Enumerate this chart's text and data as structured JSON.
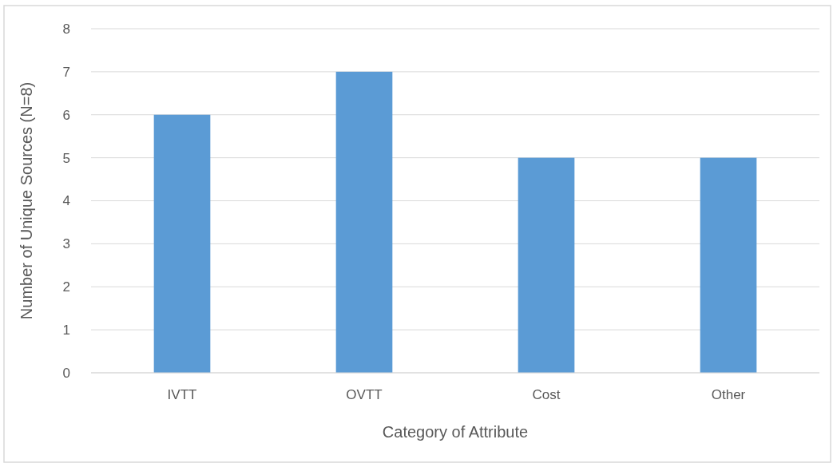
{
  "chart_data": {
    "type": "bar",
    "xlabel": "Category of Attribute",
    "ylabel": "Number of Unique Sources (N=8)",
    "categories": [
      "IVTT",
      "OVTT",
      "Cost",
      "Other"
    ],
    "values": [
      6,
      7,
      5,
      5
    ],
    "color": "#5b9bd5",
    "ylim": [
      0,
      8
    ],
    "yticks": [
      0,
      1,
      2,
      3,
      4,
      5,
      6,
      7,
      8
    ],
    "grid": "y"
  }
}
